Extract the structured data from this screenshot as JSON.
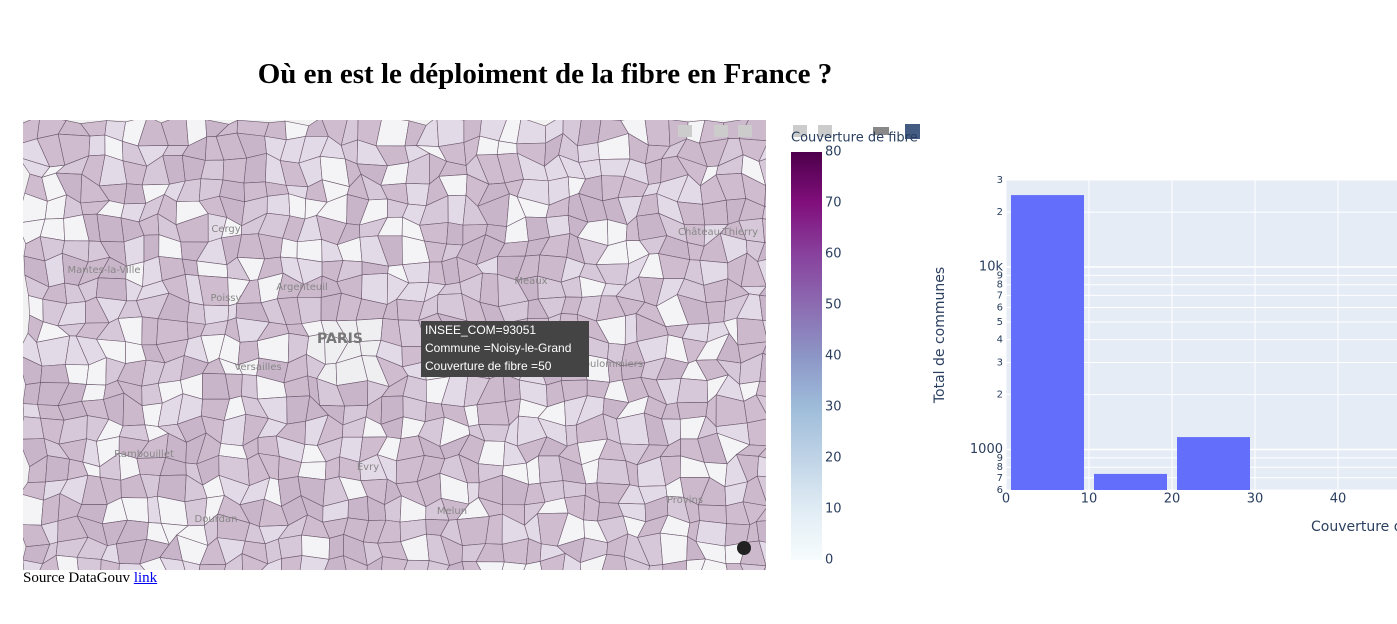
{
  "header": {
    "title": "Où en est le déploiment de la fibre en France ?"
  },
  "map": {
    "places": [
      "PARIS",
      "Argenteuil",
      "Meaux",
      "Versailles",
      "Rambouillet",
      "Évry",
      "Melun",
      "Provins",
      "Cergy",
      "Poissy",
      "Mantes-la-Ville",
      "Coulommiers",
      "Dourdan",
      "Château-Thierry"
    ],
    "tooltip": [
      "INSEE_COM=93051",
      "Commune =Noisy-le-Grand",
      "Couverture de fibre =50"
    ],
    "colorbar": {
      "title": "Couverture de fibre",
      "range": [
        0,
        80
      ],
      "ticks": [
        0,
        10,
        20,
        30,
        40,
        50,
        60,
        70,
        80
      ],
      "colors": [
        "#f7fcfd",
        "#e0ecf4",
        "#bfd3e6",
        "#9ebcda",
        "#8c96c6",
        "#8c6bb1",
        "#88419d",
        "#810f7c",
        "#4d004b"
      ]
    }
  },
  "chart_data": {
    "type": "histogram",
    "bins": [
      0,
      10,
      20,
      30
    ],
    "values": [
      24800,
      735,
      1170
    ],
    "color": "#636efa",
    "xlim": [
      0,
      47
    ],
    "xticks": [
      0,
      10,
      20,
      30,
      40
    ],
    "ylim": [
      600,
      30000
    ],
    "log_y": true,
    "yticks": [
      {
        "value": 600,
        "label": "6"
      },
      {
        "value": 700,
        "label": "7"
      },
      {
        "value": 800,
        "label": "8"
      },
      {
        "value": 900,
        "label": "9"
      },
      1000,
      {
        "value": 2000,
        "label": "2"
      },
      {
        "value": 3000,
        "label": "3"
      },
      {
        "value": 4000,
        "label": "4"
      },
      {
        "value": 5000,
        "label": "5"
      },
      {
        "value": 6000,
        "label": "6"
      },
      {
        "value": 7000,
        "label": "7"
      },
      {
        "value": 8000,
        "label": "8"
      },
      {
        "value": 9000,
        "label": "9"
      },
      {
        "value": 10000,
        "label": "10k"
      },
      {
        "value": 20000,
        "label": "2"
      },
      {
        "value": 30000,
        "label": "3"
      }
    ],
    "xlabel": "Couverture de fibre",
    "ylabel": "Total de communes",
    "grid": true
  },
  "footer": {
    "text": "Source DataGouv",
    "link": "link"
  }
}
